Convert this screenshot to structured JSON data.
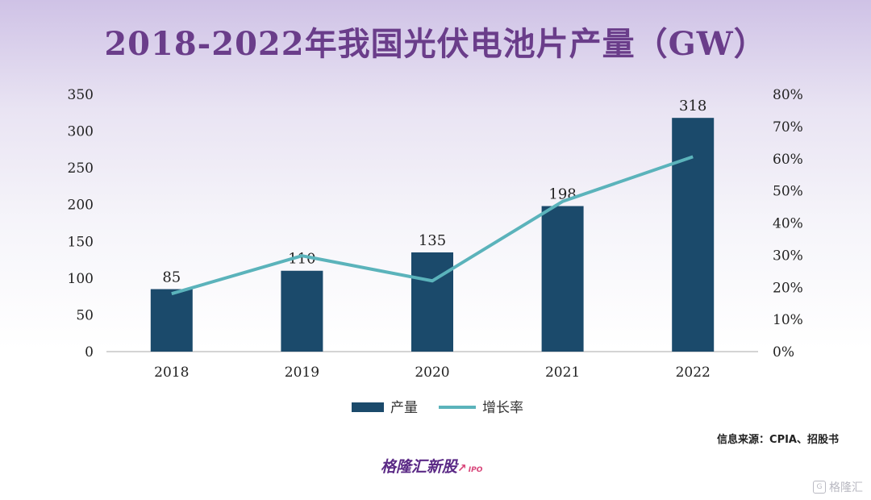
{
  "title": "2018-2022年我国光伏电池片产量（GW）",
  "source": "信息来源：CPIA、招股书",
  "brand": {
    "name": "格隆汇新股",
    "sub": "IPO"
  },
  "watermark": "格隆汇",
  "colors": {
    "bar": "#1b4a6b",
    "line": "#5bb3bb",
    "title": "#6a3d8a"
  },
  "chart_data": {
    "type": "bar",
    "title": "2018-2022年我国光伏电池片产量（GW）",
    "categories": [
      "2018",
      "2019",
      "2020",
      "2021",
      "2022"
    ],
    "series": [
      {
        "name": "产量",
        "type": "bar",
        "axis": "left",
        "values": [
          85,
          110,
          135,
          198,
          318
        ],
        "labels": [
          "85",
          "110",
          "135",
          "198",
          "318"
        ]
      },
      {
        "name": "增长率",
        "type": "line",
        "axis": "right",
        "values": [
          18.0,
          29.8,
          22.0,
          46.7,
          60.6
        ]
      }
    ],
    "y_left": {
      "min": 0,
      "max": 350,
      "ticks": [
        0,
        50,
        100,
        150,
        200,
        250,
        300,
        350
      ],
      "tick_labels": [
        "0",
        "50",
        "100",
        "150",
        "200",
        "250",
        "300",
        "350"
      ]
    },
    "y_right": {
      "min": 0,
      "max": 80,
      "ticks": [
        0,
        10,
        20,
        30,
        40,
        50,
        60,
        70,
        80
      ],
      "tick_labels": [
        "0%",
        "10%",
        "20%",
        "30%",
        "40%",
        "50%",
        "60%",
        "70%",
        "80%"
      ]
    },
    "legend_position": "bottom",
    "grid": false
  }
}
